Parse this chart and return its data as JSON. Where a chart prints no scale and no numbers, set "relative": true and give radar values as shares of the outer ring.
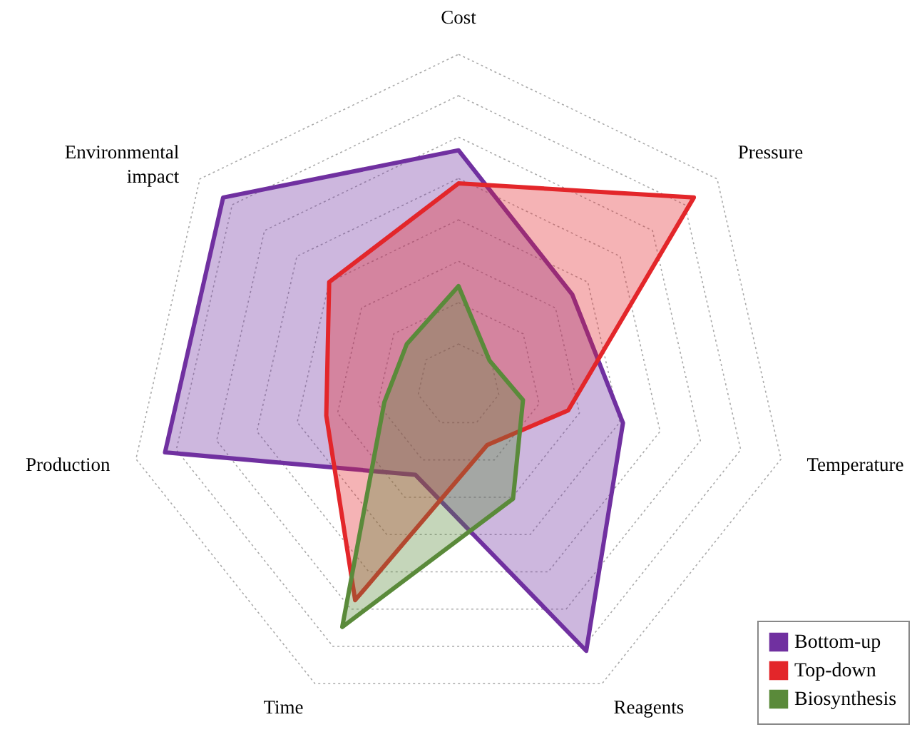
{
  "chart_data": {
    "type": "radar",
    "relative": true,
    "grid": true,
    "legend": "bottom right",
    "categories": [
      "Cost",
      "Pressure",
      "Temperature",
      "Reagents",
      "Time",
      "Production",
      "Environmental impact"
    ],
    "series": [
      {
        "name": "Bottom-up",
        "color": "#7030a0",
        "values": [
          0.71,
          0.44,
          0.51,
          0.89,
          0.3,
          0.91,
          0.91
        ]
      },
      {
        "name": "Top-down",
        "color": "#e3262a",
        "values": [
          0.61,
          0.91,
          0.34,
          0.2,
          0.72,
          0.41,
          0.5
        ]
      },
      {
        "name": "Biosynthesis",
        "color": "#5a8a3a",
        "values": [
          0.3,
          0.12,
          0.2,
          0.38,
          0.81,
          0.23,
          0.2
        ]
      }
    ]
  }
}
